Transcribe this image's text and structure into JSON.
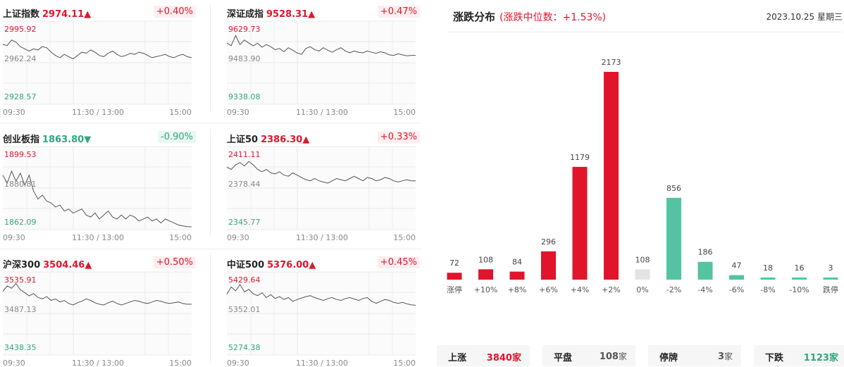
{
  "indices": [
    {
      "id": "sh",
      "name": "上证指数",
      "value": "2974.11",
      "arrow": "▲",
      "dir": "up",
      "change": "+0.40%",
      "y_top": "2995.92",
      "y_mid": "2962.24",
      "y_bot": "2928.57",
      "ylim": [
        2928.57,
        2995.92
      ],
      "series": [
        2980,
        2979,
        2984,
        2982,
        2978,
        2976,
        2974,
        2976,
        2975,
        2978,
        2977,
        2973,
        2970,
        2968,
        2971,
        2969,
        2967,
        2970,
        2973,
        2972,
        2975,
        2973,
        2970,
        2969,
        2972,
        2974,
        2971,
        2969,
        2970,
        2972,
        2971,
        2973,
        2972,
        2970,
        2968,
        2969,
        2970,
        2971,
        2969,
        2968,
        2970,
        2971,
        2969,
        2968
      ]
    },
    {
      "id": "sz",
      "name": "深证成指",
      "value": "9528.31",
      "arrow": "▲",
      "dir": "up",
      "change": "+0.47%",
      "y_top": "9629.73",
      "y_mid": "9483.90",
      "y_bot": "9338.08",
      "ylim": [
        9338.08,
        9629.73
      ],
      "series": [
        9566,
        9556,
        9595,
        9560,
        9578,
        9566,
        9555,
        9566,
        9550,
        9560,
        9552,
        9540,
        9545,
        9532,
        9548,
        9538,
        9528,
        9522,
        9545,
        9552,
        9540,
        9535,
        9548,
        9538,
        9530,
        9540,
        9548,
        9535,
        9528,
        9535,
        9530,
        9528,
        9535,
        9530,
        9526,
        9532,
        9528,
        9520,
        9518,
        9524,
        9520,
        9516,
        9518,
        9518
      ]
    },
    {
      "id": "cyb",
      "name": "创业板指",
      "value": "1863.80",
      "arrow": "▼",
      "dir": "down",
      "change": "-0.90%",
      "y_top": "1899.53",
      "y_mid": "1880.81",
      "y_bot": "1862.09",
      "ylim": [
        1862.09,
        1899.53
      ],
      "series": [
        1888,
        1884,
        1890,
        1885,
        1889,
        1883,
        1888,
        1880,
        1876,
        1878,
        1875,
        1874,
        1872,
        1873,
        1870,
        1871,
        1869,
        1870,
        1871,
        1868,
        1867,
        1869,
        1866,
        1868,
        1870,
        1867,
        1866,
        1868,
        1866,
        1868,
        1867,
        1865,
        1866,
        1867,
        1865,
        1866,
        1864,
        1866,
        1865,
        1864,
        1863,
        1862.5,
        1862.2,
        1862.1
      ]
    },
    {
      "id": "sz50",
      "name": "上证50",
      "value": "2386.30",
      "arrow": "▲",
      "dir": "up",
      "change": "+0.33%",
      "y_top": "2411.11",
      "y_mid": "2378.44",
      "y_bot": "2345.77",
      "ylim": [
        2345.77,
        2411.11
      ],
      "series": [
        2398,
        2396,
        2400,
        2402,
        2399,
        2403,
        2400,
        2396,
        2394,
        2396,
        2393,
        2392,
        2394,
        2391,
        2390,
        2393,
        2391,
        2389,
        2387,
        2386,
        2388,
        2386,
        2385,
        2384,
        2386,
        2388,
        2387,
        2386,
        2388,
        2390,
        2388,
        2386,
        2389,
        2388,
        2386,
        2387,
        2389,
        2388,
        2386,
        2385,
        2386,
        2387,
        2386,
        2386
      ]
    },
    {
      "id": "hs300",
      "name": "沪深300",
      "value": "3504.46",
      "arrow": "▲",
      "dir": "up",
      "change": "+0.50%",
      "y_top": "3535.91",
      "y_mid": "3487.13",
      "y_bot": "3438.35",
      "ylim": [
        3438.35,
        3535.91
      ],
      "series": [
        3518,
        3525,
        3522,
        3528,
        3520,
        3516,
        3512,
        3515,
        3510,
        3508,
        3511,
        3506,
        3508,
        3504,
        3506,
        3502,
        3500,
        3503,
        3505,
        3508,
        3506,
        3503,
        3501,
        3500,
        3503,
        3505,
        3502,
        3500,
        3502,
        3504,
        3506,
        3505,
        3503,
        3502,
        3504,
        3506,
        3505,
        3503,
        3502,
        3503,
        3504,
        3502,
        3501,
        3501
      ]
    },
    {
      "id": "zz500",
      "name": "中证500",
      "value": "5376.00",
      "arrow": "▲",
      "dir": "up",
      "change": "+0.45%",
      "y_top": "5429.64",
      "y_mid": "5352.01",
      "y_bot": "5274.38",
      "ylim": [
        5274.38,
        5429.64
      ],
      "series": [
        5395,
        5410,
        5402,
        5415,
        5400,
        5405,
        5396,
        5392,
        5398,
        5388,
        5394,
        5386,
        5390,
        5384,
        5388,
        5380,
        5384,
        5387,
        5390,
        5392,
        5388,
        5385,
        5382,
        5386,
        5388,
        5384,
        5382,
        5386,
        5388,
        5385,
        5382,
        5386,
        5388,
        5380,
        5376,
        5380,
        5384,
        5382,
        5378,
        5376,
        5378,
        5375,
        5373,
        5372
      ]
    }
  ],
  "time_labels": {
    "start": "09:30",
    "mid": "11:30 / 13:00",
    "end": "15:00"
  },
  "distribution": {
    "title": "涨跌分布",
    "subtitle": "(涨跌中位数：+1.53%)",
    "date": "2023.10.25 星期三"
  },
  "chart_data": {
    "type": "bar",
    "categories": [
      "涨停",
      "+10%",
      "+8%",
      "+6%",
      "+4%",
      "+2%",
      "0%",
      "-2%",
      "-4%",
      "-6%",
      "-8%",
      "-10%",
      "跌停"
    ],
    "values": [
      72,
      108,
      84,
      296,
      1179,
      2173,
      108,
      856,
      186,
      47,
      18,
      16,
      3
    ],
    "colors": [
      "#e0152c",
      "#e0152c",
      "#e0152c",
      "#e0152c",
      "#e0152c",
      "#e0152c",
      "#e3e3e3",
      "#54c3a1",
      "#54c3a1",
      "#54c3a1",
      "#54c3a1",
      "#54c3a1",
      "#54c3a1"
    ],
    "title": "涨跌分布",
    "xlabel": "",
    "ylabel": ""
  },
  "summary": [
    {
      "label": "上涨",
      "count": "3840",
      "unit": "家",
      "tone": "up"
    },
    {
      "label": "平盘",
      "count": "108",
      "unit": "家",
      "tone": "neutral"
    },
    {
      "label": "停牌",
      "count": "3",
      "unit": "家",
      "tone": "neutral"
    },
    {
      "label": "下跌",
      "count": "1123",
      "unit": "家",
      "tone": "down"
    }
  ],
  "colors": {
    "up": "#e0152c",
    "down": "#30a67f",
    "flat": "#e3e3e3",
    "bar_down": "#54c3a1"
  }
}
